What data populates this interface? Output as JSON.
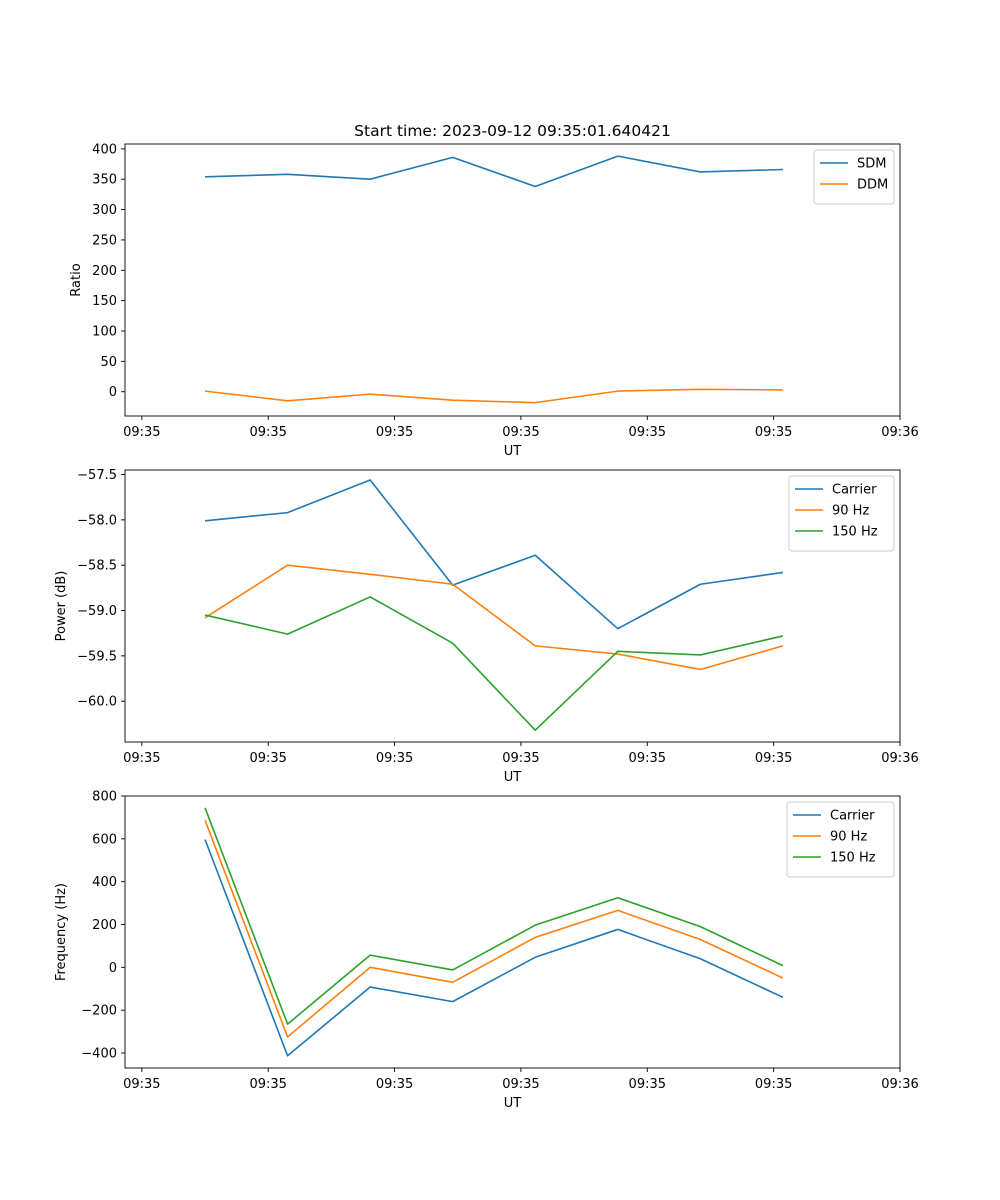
{
  "figure_title": "Start time: 2023-09-12 09:35:01.640421",
  "chart_data": [
    {
      "type": "line",
      "title": "Start time: 2023-09-12 09:35:01.640421",
      "xlabel": "UT",
      "ylabel": "Ratio",
      "xlim": [
        -0.2,
        9.0
      ],
      "ylim": [
        -40,
        408
      ],
      "x_ticks": [
        0,
        1.5,
        3,
        4.5,
        6,
        7.5,
        9
      ],
      "x_tick_labels": [
        "09:35",
        "09:35",
        "09:35",
        "09:35",
        "09:35",
        "09:35",
        "09:36"
      ],
      "y_ticks": [
        0,
        50,
        100,
        150,
        200,
        250,
        300,
        350,
        400
      ],
      "y_tick_labels": [
        "0",
        "50",
        "100",
        "150",
        "200",
        "250",
        "300",
        "350",
        "400"
      ],
      "legend_position": "top-right",
      "x": [
        0.75,
        1.73,
        2.71,
        3.69,
        4.67,
        5.65,
        6.63,
        7.61
      ],
      "series": [
        {
          "name": "SDM",
          "color": "#1f77b4",
          "values": [
            354,
            358,
            350,
            386,
            338,
            388,
            362,
            366
          ]
        },
        {
          "name": "DDM",
          "color": "#ff7f0e",
          "values": [
            1,
            -15,
            -4,
            -14,
            -18,
            1,
            4,
            3
          ]
        }
      ]
    },
    {
      "type": "line",
      "title": "",
      "xlabel": "UT",
      "ylabel": "Power (dB)",
      "xlim": [
        -0.2,
        9.0
      ],
      "ylim": [
        -60.45,
        -57.45
      ],
      "x_ticks": [
        0,
        1.5,
        3,
        4.5,
        6,
        7.5,
        9
      ],
      "x_tick_labels": [
        "09:35",
        "09:35",
        "09:35",
        "09:35",
        "09:35",
        "09:35",
        "09:36"
      ],
      "y_ticks": [
        -57.5,
        -58.0,
        -58.5,
        -59.0,
        -59.5,
        -60.0
      ],
      "y_tick_labels": [
        "−57.5",
        "−58.0",
        "−58.5",
        "−59.0",
        "−59.5",
        "−60.0"
      ],
      "legend_position": "top-right",
      "x": [
        0.75,
        1.73,
        2.71,
        3.69,
        4.67,
        5.65,
        6.63,
        7.61
      ],
      "series": [
        {
          "name": "Carrier",
          "color": "#1f77b4",
          "values": [
            -58.01,
            -57.92,
            -57.56,
            -58.72,
            -58.39,
            -59.2,
            -58.71,
            -58.58
          ]
        },
        {
          "name": "90 Hz",
          "color": "#ff7f0e",
          "values": [
            -59.08,
            -58.5,
            -58.6,
            -58.71,
            -59.39,
            -59.48,
            -59.65,
            -59.39
          ]
        },
        {
          "name": "150 Hz",
          "color": "#2ca02c",
          "values": [
            -59.05,
            -59.26,
            -58.85,
            -59.36,
            -60.32,
            -59.45,
            -59.49,
            -59.28
          ]
        }
      ]
    },
    {
      "type": "line",
      "title": "",
      "xlabel": "UT",
      "ylabel": "Frequency (Hz)",
      "xlim": [
        -0.2,
        9.0
      ],
      "ylim": [
        -470,
        800
      ],
      "x_ticks": [
        0,
        1.5,
        3,
        4.5,
        6,
        7.5,
        9
      ],
      "x_tick_labels": [
        "09:35",
        "09:35",
        "09:35",
        "09:35",
        "09:35",
        "09:35",
        "09:36"
      ],
      "y_ticks": [
        -400,
        -200,
        0,
        200,
        400,
        600,
        800
      ],
      "y_tick_labels": [
        "−400",
        "−200",
        "0",
        "200",
        "400",
        "600",
        "800"
      ],
      "legend_position": "top-right",
      "x": [
        0.75,
        1.73,
        2.71,
        3.69,
        4.67,
        5.65,
        6.63,
        7.61
      ],
      "series": [
        {
          "name": "Carrier",
          "color": "#1f77b4",
          "values": [
            597,
            -413,
            -92,
            -160,
            47,
            177,
            40,
            -140
          ]
        },
        {
          "name": "90 Hz",
          "color": "#ff7f0e",
          "values": [
            687,
            -325,
            0,
            -70,
            140,
            266,
            130,
            -50
          ]
        },
        {
          "name": "150 Hz",
          "color": "#2ca02c",
          "values": [
            745,
            -265,
            57,
            -12,
            197,
            325,
            190,
            8
          ]
        }
      ]
    }
  ]
}
